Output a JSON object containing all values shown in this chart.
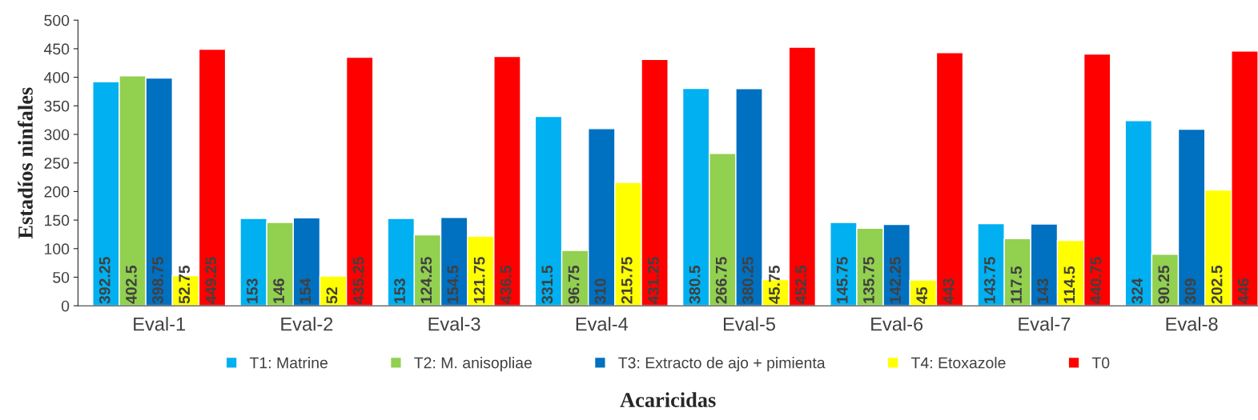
{
  "chart_data": {
    "type": "bar",
    "xlabel": "Acaricidas",
    "ylabel": "Estadíos ninfales",
    "categories": [
      "Eval-1",
      "Eval-2",
      "Eval-3",
      "Eval-4",
      "Eval-5",
      "Eval-6",
      "Eval-7",
      "Eval-8"
    ],
    "series": [
      {
        "name": "T1: Matrine",
        "color": "#00b0f0",
        "values": [
          392.25,
          153,
          153,
          331.5,
          380.5,
          145.75,
          143.75,
          324
        ]
      },
      {
        "name": "T2: M. anisopliae",
        "color": "#92d050",
        "values": [
          402.5,
          146,
          124.25,
          96.75,
          266.75,
          135.75,
          117.5,
          90.25
        ]
      },
      {
        "name": "T3: Extracto de ajo + pimienta",
        "color": "#0070c0",
        "values": [
          398.75,
          154,
          154.5,
          310,
          380.25,
          142.25,
          143,
          309
        ]
      },
      {
        "name": "T4: Etoxazole",
        "color": "#ffff00",
        "values": [
          52.75,
          52,
          121.75,
          215.75,
          45.75,
          45,
          114.5,
          202.5
        ]
      },
      {
        "name": "T0",
        "color": "#ff0000",
        "values": [
          449.25,
          435.25,
          436.5,
          431.25,
          452.5,
          443,
          440.75,
          446
        ]
      }
    ],
    "ylim": [
      0,
      500
    ],
    "yticks": [
      0,
      50,
      100,
      150,
      200,
      250,
      300,
      350,
      400,
      450,
      500
    ],
    "data_labels": true,
    "legend": "bottom",
    "grid": false
  }
}
